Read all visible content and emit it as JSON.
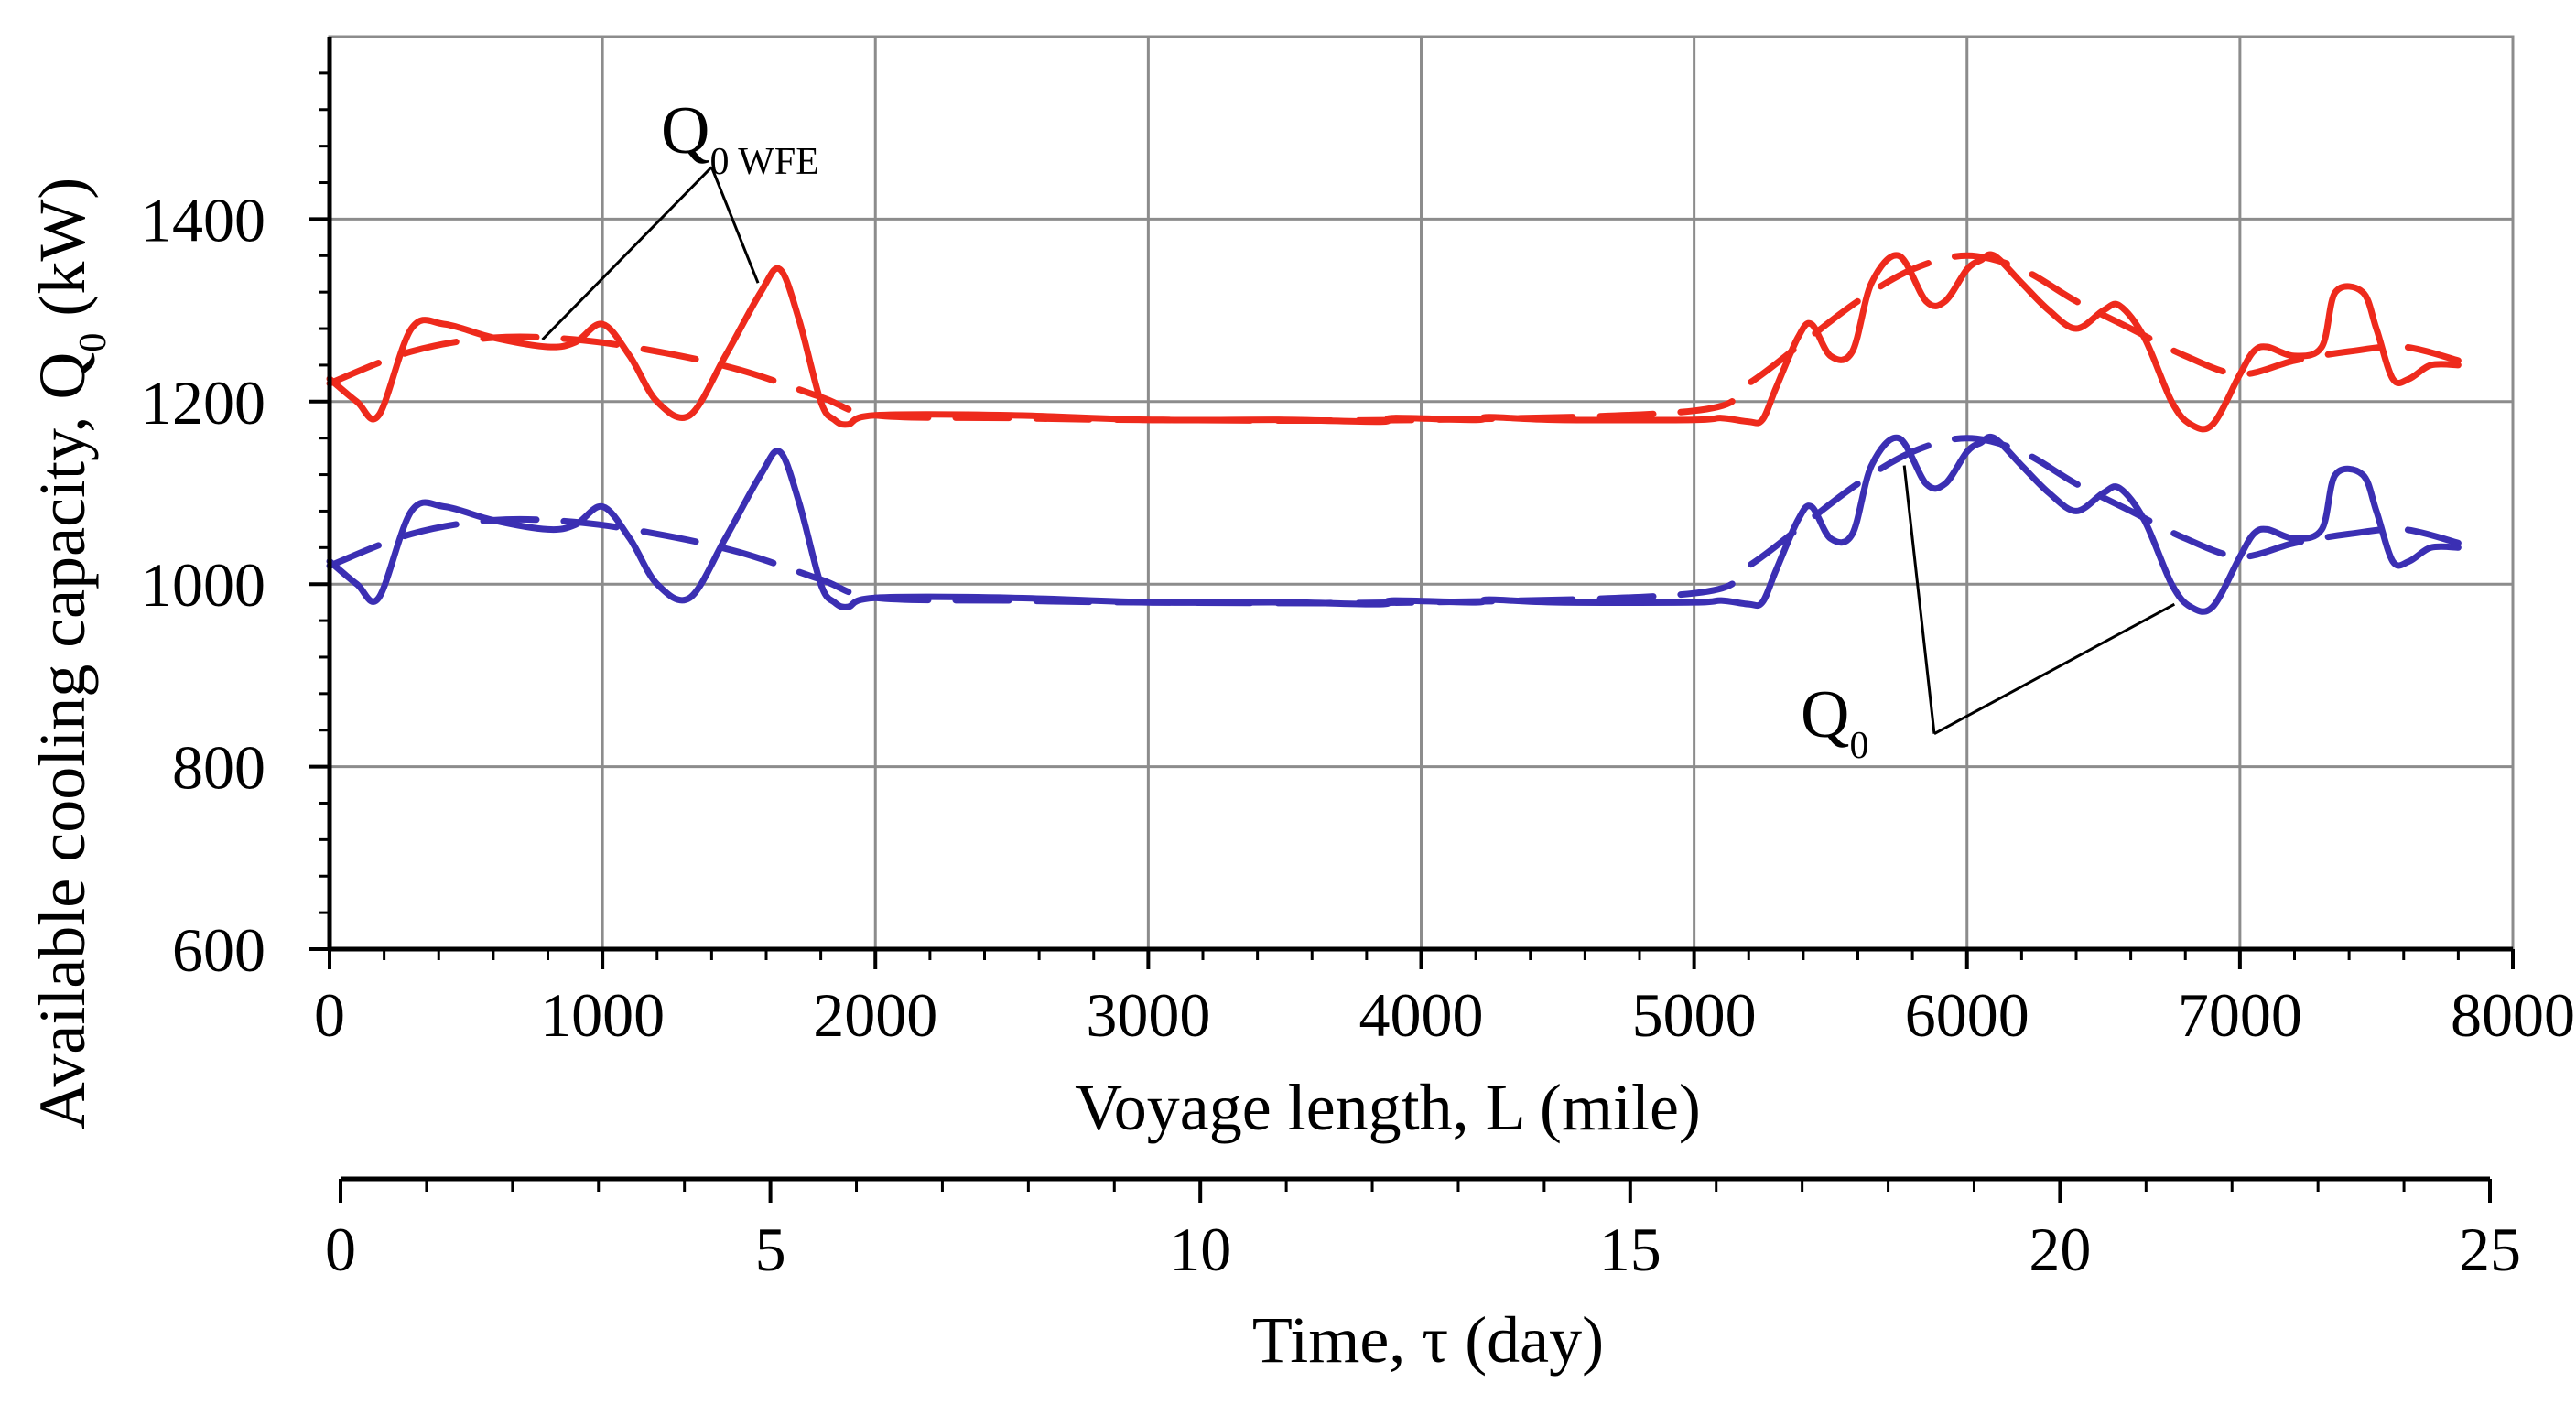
{
  "chart_data": {
    "type": "line",
    "title": "",
    "xlabel": "Voyage length, L (mile)",
    "ylabel_text": "Available cooling capacity, Q",
    "ylabel_sub": "0",
    "ylabel_unit": " (kW)",
    "xlim": [
      0,
      8000
    ],
    "ylim": [
      600,
      1600
    ],
    "x_ticks": [
      0,
      1000,
      2000,
      3000,
      4000,
      5000,
      6000,
      7000,
      8000
    ],
    "x_tick_labels": [
      "0",
      "1000",
      "2000",
      "3000",
      "4000",
      "5000",
      "6000",
      "7000",
      "8000"
    ],
    "y_ticks": [
      600,
      800,
      1000,
      1200,
      1400
    ],
    "y_tick_labels": [
      "600",
      "800",
      "1000",
      "1200",
      "1400"
    ],
    "grid": true,
    "secondary_axis": {
      "label": "Time, τ (day)",
      "range": [
        0,
        25
      ],
      "ticks": [
        0,
        5,
        10,
        15,
        20,
        25
      ],
      "tick_labels": [
        "0",
        "5",
        "10",
        "15",
        "20",
        "25"
      ]
    },
    "annotations": [
      {
        "text": "Q",
        "sub": "0 WFE",
        "points_to": "Q0 WFE series"
      },
      {
        "text": "Q",
        "sub": "0",
        "points_to": "Q0 series"
      }
    ],
    "series": [
      {
        "name": "Q0 WFE (actual)",
        "color": "#ee2a1c",
        "style": "solid",
        "x": [
          0,
          100,
          180,
          300,
          420,
          600,
          800,
          900,
          1000,
          1100,
          1200,
          1320,
          1450,
          1580,
          1650,
          1720,
          1800,
          1850,
          1900,
          2000,
          2500,
          3000,
          3500,
          3850,
          3900,
          4200,
          4250,
          4500,
          5000,
          5100,
          5200,
          5250,
          5300,
          5380,
          5430,
          5500,
          5580,
          5650,
          5750,
          5850,
          5920,
          6000,
          6050,
          6100,
          6200,
          6300,
          6400,
          6500,
          6560,
          6650,
          6750,
          6820,
          6900,
          7000,
          7050,
          7100,
          7200,
          7300,
          7350,
          7450,
          7500,
          7560,
          7620,
          7700,
          7800
        ],
        "y": [
          1225,
          1200,
          1185,
          1280,
          1285,
          1270,
          1260,
          1265,
          1285,
          1250,
          1200,
          1185,
          1250,
          1320,
          1345,
          1290,
          1200,
          1180,
          1175,
          1185,
          1185,
          1180,
          1180,
          1178,
          1182,
          1180,
          1183,
          1180,
          1180,
          1182,
          1178,
          1180,
          1215,
          1270,
          1285,
          1250,
          1255,
          1330,
          1360,
          1310,
          1310,
          1345,
          1355,
          1360,
          1330,
          1300,
          1280,
          1300,
          1305,
          1270,
          1200,
          1175,
          1175,
          1230,
          1255,
          1260,
          1250,
          1260,
          1320,
          1320,
          1280,
          1225,
          1225,
          1240,
          1240
        ]
      },
      {
        "name": "Q0 WFE (trend)",
        "color": "#ee2a1c",
        "style": "dashed",
        "x": [
          0,
          300,
          600,
          900,
          1200,
          1500,
          1800,
          2000,
          2500,
          3000,
          4000,
          5000,
          5200,
          5400,
          5600,
          5800,
          6000,
          6200,
          6400,
          6600,
          6800,
          7000,
          7200,
          7400,
          7600,
          7800
        ],
        "y": [
          1220,
          1255,
          1270,
          1268,
          1255,
          1235,
          1205,
          1185,
          1182,
          1180,
          1180,
          1190,
          1220,
          1265,
          1310,
          1345,
          1360,
          1345,
          1310,
          1280,
          1250,
          1230,
          1245,
          1255,
          1260,
          1245
        ]
      },
      {
        "name": "Q0 (actual)",
        "color": "#3b2fb3",
        "style": "solid",
        "x": [
          0,
          100,
          180,
          300,
          420,
          600,
          800,
          900,
          1000,
          1100,
          1200,
          1320,
          1450,
          1580,
          1650,
          1720,
          1800,
          1850,
          1900,
          2000,
          2500,
          3000,
          3500,
          3850,
          3900,
          4200,
          4250,
          4500,
          5000,
          5100,
          5200,
          5250,
          5300,
          5380,
          5430,
          5500,
          5580,
          5650,
          5750,
          5850,
          5920,
          6000,
          6050,
          6100,
          6200,
          6300,
          6400,
          6500,
          6560,
          6650,
          6750,
          6820,
          6900,
          7000,
          7050,
          7100,
          7200,
          7300,
          7350,
          7450,
          7500,
          7560,
          7620,
          7700,
          7800
        ],
        "y": [
          1025,
          1000,
          985,
          1080,
          1085,
          1070,
          1060,
          1065,
          1085,
          1050,
          1000,
          985,
          1050,
          1120,
          1145,
          1090,
          1000,
          980,
          975,
          985,
          985,
          980,
          980,
          978,
          982,
          980,
          983,
          980,
          980,
          982,
          978,
          980,
          1015,
          1070,
          1085,
          1050,
          1055,
          1130,
          1160,
          1110,
          1110,
          1145,
          1155,
          1160,
          1130,
          1100,
          1080,
          1100,
          1105,
          1070,
          1000,
          975,
          975,
          1030,
          1055,
          1060,
          1050,
          1060,
          1120,
          1120,
          1080,
          1025,
          1025,
          1040,
          1040
        ]
      },
      {
        "name": "Q0 (trend)",
        "color": "#3b2fb3",
        "style": "dashed",
        "x": [
          0,
          300,
          600,
          900,
          1200,
          1500,
          1800,
          2000,
          2500,
          3000,
          4000,
          5000,
          5200,
          5400,
          5600,
          5800,
          6000,
          6200,
          6400,
          6600,
          6800,
          7000,
          7200,
          7400,
          7600,
          7800
        ],
        "y": [
          1020,
          1055,
          1070,
          1068,
          1055,
          1035,
          1005,
          985,
          982,
          980,
          980,
          990,
          1020,
          1065,
          1110,
          1145,
          1160,
          1145,
          1110,
          1080,
          1050,
          1030,
          1045,
          1055,
          1060,
          1045
        ]
      }
    ]
  }
}
